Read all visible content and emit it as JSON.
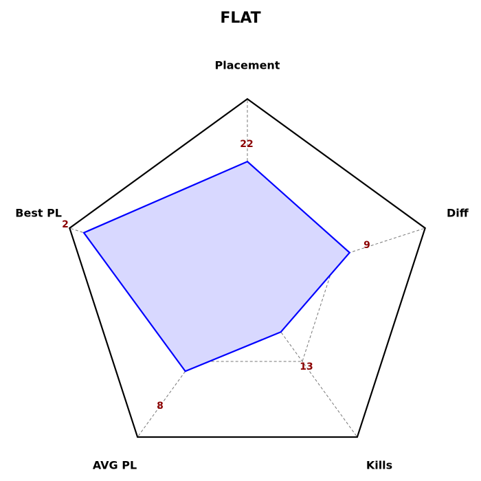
{
  "chart_data": {
    "type": "radar",
    "title": "FLAT",
    "axes": [
      "Placement",
      "Diff",
      "Kills",
      "AVG PL",
      "Best PL"
    ],
    "value_labels": [
      "22",
      "9",
      "13",
      "8",
      "2"
    ],
    "normalized_values": [
      0.665,
      0.575,
      0.305,
      0.565,
      0.92
    ],
    "grid_levels": [
      0.5,
      1.0
    ],
    "colors": {
      "series_line": "#0000ff",
      "series_fill": "#d8d8ff",
      "outer_frame": "#000000",
      "grid": "#777777",
      "value_label": "#8b0000"
    }
  }
}
